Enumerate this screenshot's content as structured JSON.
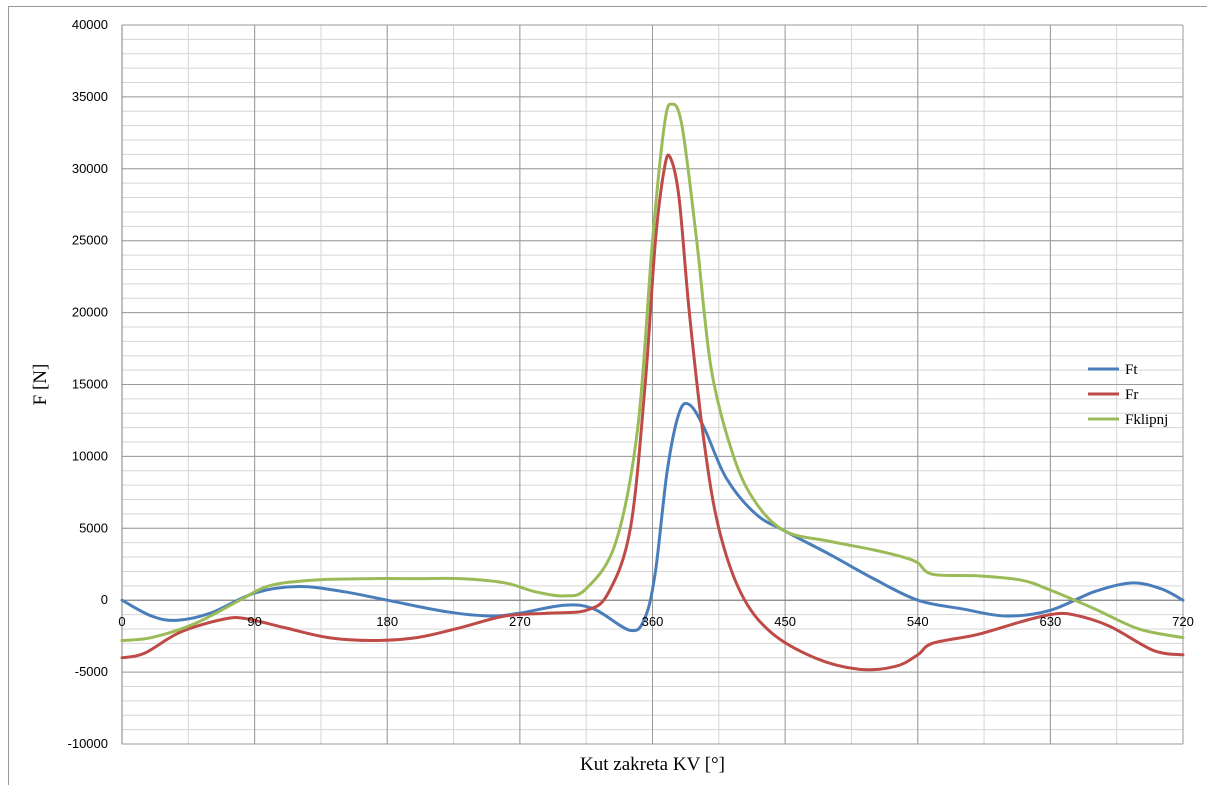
{
  "chart_data": {
    "type": "line",
    "title": "",
    "xlabel": "Kut zakreta KV [°]",
    "ylabel": "F [N]",
    "xlim": [
      0,
      720
    ],
    "ylim": [
      -10000,
      40000
    ],
    "x_ticks": [
      0,
      90,
      180,
      270,
      360,
      450,
      540,
      630,
      720
    ],
    "y_ticks": [
      -10000,
      -5000,
      0,
      5000,
      10000,
      15000,
      20000,
      25000,
      30000,
      35000,
      40000
    ],
    "x_tick_labels": [
      "0",
      "90",
      "180",
      "270",
      "360",
      "450",
      "540",
      "630",
      "720"
    ],
    "y_tick_labels": [
      "-10000",
      "-5000",
      "0",
      "5000",
      "10000",
      "15000",
      "20000",
      "25000",
      "30000",
      "35000",
      "40000"
    ],
    "grid": true,
    "legend_position": "right",
    "series": [
      {
        "name": "Ft",
        "color": "#4a7ebb",
        "x": [
          0,
          20,
          37,
          60,
          90,
          120,
          150,
          180,
          220,
          250,
          270,
          300,
          320,
          345,
          355,
          362,
          370,
          378,
          385,
          395,
          410,
          430,
          450,
          480,
          510,
          540,
          570,
          600,
          630,
          660,
          685,
          705,
          720
        ],
        "y": [
          0,
          -1100,
          -1400,
          -900,
          500,
          950,
          600,
          0,
          -800,
          -1100,
          -900,
          -350,
          -600,
          -2100,
          -1200,
          2000,
          9000,
          13000,
          13600,
          12000,
          8500,
          6000,
          4800,
          3200,
          1500,
          0,
          -600,
          -1100,
          -700,
          600,
          1200,
          800,
          0
        ]
      },
      {
        "name": "Fr",
        "color": "#be4b48",
        "x": [
          0,
          15,
          40,
          70,
          85,
          110,
          140,
          170,
          200,
          230,
          260,
          290,
          315,
          330,
          345,
          355,
          362,
          368,
          372,
          378,
          385,
          395,
          405,
          420,
          440,
          470,
          500,
          525,
          540,
          550,
          580,
          610,
          630,
          645,
          670,
          700,
          720
        ],
        "y": [
          -4000,
          -3700,
          -2200,
          -1300,
          -1300,
          -1900,
          -2600,
          -2800,
          -2600,
          -1900,
          -1100,
          -900,
          -700,
          500,
          5000,
          15000,
          25000,
          30000,
          30800,
          28000,
          20000,
          11000,
          5000,
          500,
          -2200,
          -4000,
          -4800,
          -4600,
          -3800,
          -3000,
          -2400,
          -1500,
          -1000,
          -1000,
          -1800,
          -3500,
          -3800
        ]
      },
      {
        "name": "Fklipnj",
        "color": "#9bbb59",
        "x": [
          0,
          20,
          50,
          80,
          100,
          130,
          170,
          200,
          230,
          260,
          280,
          300,
          315,
          335,
          350,
          360,
          368,
          373,
          380,
          390,
          400,
          415,
          430,
          450,
          480,
          510,
          530,
          540,
          550,
          580,
          610,
          630,
          660,
          690,
          720
        ],
        "y": [
          -2800,
          -2600,
          -1600,
          0,
          1000,
          1400,
          1500,
          1500,
          1500,
          1200,
          600,
          300,
          800,
          4000,
          12000,
          25000,
          33000,
          34500,
          33000,
          25000,
          16000,
          10000,
          6800,
          4800,
          4100,
          3500,
          3000,
          2600,
          1800,
          1700,
          1400,
          700,
          -600,
          -2000,
          -2600
        ]
      }
    ]
  }
}
